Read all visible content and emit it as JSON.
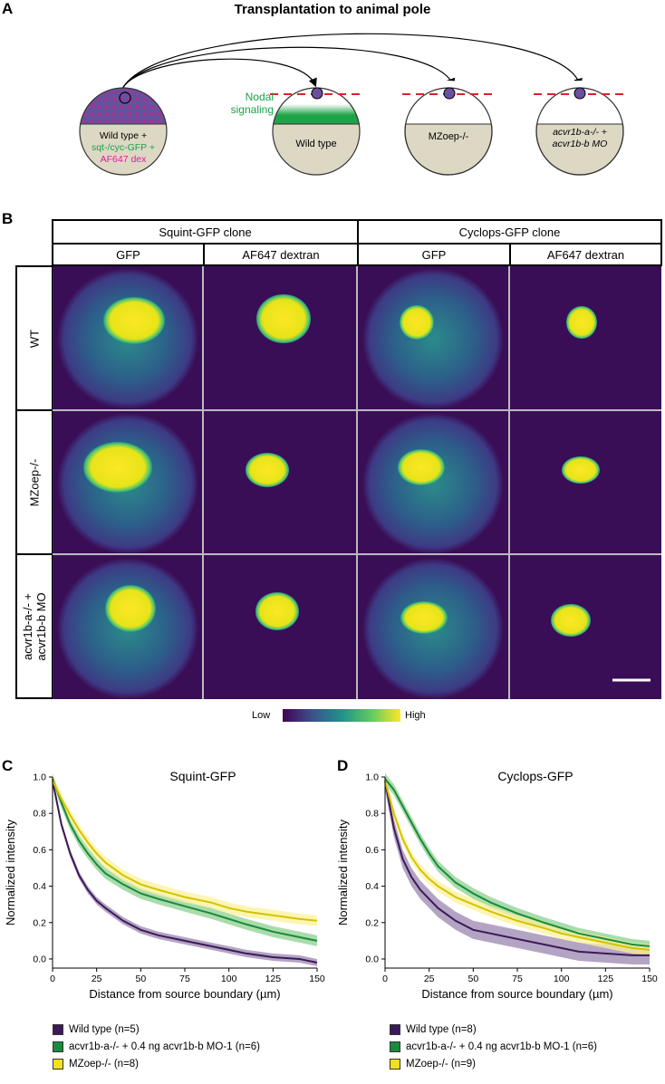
{
  "panel_a": {
    "letter": "A",
    "title": "Transplantation to animal pole",
    "donor_lines": [
      "Wild type +",
      "sqt-/cyc-GFP +",
      "AF647 dex"
    ],
    "nodal_label": [
      "Nodal",
      "signaling"
    ],
    "hosts": [
      "Wild type",
      "MZoep-/-",
      "acvr1b-a-/- + acvr1b-b MO"
    ],
    "colors": {
      "yolk": "#ddd8c4",
      "purple": "#6a4f9e",
      "green": "#17a34a",
      "magenta": "#e6199e",
      "red_dash": "#e0202a"
    }
  },
  "panel_b": {
    "letter": "B",
    "groups": [
      "Squint-GFP clone",
      "Cyclops-GFP clone"
    ],
    "columns": [
      "GFP",
      "AF647 dextran",
      "GFP",
      "AF647 dextran"
    ],
    "rows": [
      "WT",
      "MZoep-/-",
      "acvr1b-a-/- + acvr1b-b MO"
    ],
    "colorbar": {
      "low": "Low",
      "high": "High"
    }
  },
  "charts": [
    {
      "letter": "C",
      "title": "Squint-GFP",
      "xlabel": "Distance from source boundary (µm)",
      "ylabel": "Normalized intensity",
      "xticks": [
        "0",
        "25",
        "50",
        "75",
        "100",
        "125",
        "150"
      ],
      "yticks": [
        "0.0",
        "0.2",
        "0.4",
        "0.6",
        "0.8",
        "1.0"
      ],
      "legend": [
        "Wild type (n=5)",
        "acvr1b-a-/- + 0.4 ng acvr1b-b MO-1 (n=6)",
        "MZoep-/- (n=8)"
      ]
    },
    {
      "letter": "D",
      "title": "Cyclops-GFP",
      "xlabel": "Distance from source boundary (µm)",
      "ylabel": "Normalized intensity",
      "xticks": [
        "0",
        "25",
        "50",
        "75",
        "100",
        "125",
        "150"
      ],
      "yticks": [
        "0.0",
        "0.2",
        "0.4",
        "0.6",
        "0.8",
        "1.0"
      ],
      "legend": [
        "Wild type (n=8)",
        "acvr1b-a-/- + 0.4 ng acvr1b-b MO-1 (n=6)",
        "MZoep-/- (n=9)"
      ]
    }
  ],
  "chart_data": [
    {
      "type": "line",
      "title": "Squint-GFP",
      "xlabel": "Distance from source boundary (µm)",
      "ylabel": "Normalized intensity",
      "xlim": [
        0,
        150
      ],
      "ylim": [
        -0.05,
        1.0
      ],
      "x": [
        0,
        5,
        10,
        15,
        20,
        25,
        30,
        40,
        50,
        60,
        75,
        90,
        100,
        110,
        125,
        140,
        150
      ],
      "series": [
        {
          "name": "Wild type (n=5)",
          "color": "#3b1a59",
          "band": "#9b86b0",
          "values": [
            0.98,
            0.74,
            0.58,
            0.46,
            0.38,
            0.32,
            0.28,
            0.21,
            0.16,
            0.13,
            0.1,
            0.07,
            0.05,
            0.03,
            0.01,
            0.0,
            -0.02
          ],
          "err": 0.02
        },
        {
          "name": "acvr1b-a-/- + 0.4 ng acvr1b-b MO-1 (n=6)",
          "color": "#1a8a3c",
          "band": "#8ed08f",
          "values": [
            0.99,
            0.86,
            0.74,
            0.65,
            0.58,
            0.52,
            0.47,
            0.41,
            0.36,
            0.33,
            0.29,
            0.25,
            0.22,
            0.19,
            0.15,
            0.12,
            0.1
          ],
          "err": 0.03
        },
        {
          "name": "MZoep-/- (n=8)",
          "color": "#d4c300",
          "band": "#fbf29a",
          "values": [
            0.98,
            0.88,
            0.79,
            0.71,
            0.64,
            0.58,
            0.53,
            0.46,
            0.41,
            0.38,
            0.34,
            0.31,
            0.28,
            0.26,
            0.24,
            0.22,
            0.21
          ],
          "err": 0.03
        }
      ]
    },
    {
      "type": "line",
      "title": "Cyclops-GFP",
      "xlabel": "Distance from source boundary (µm)",
      "ylabel": "Normalized intensity",
      "xlim": [
        0,
        150
      ],
      "ylim": [
        -0.05,
        1.0
      ],
      "x": [
        0,
        5,
        10,
        15,
        20,
        25,
        30,
        40,
        50,
        60,
        75,
        90,
        100,
        110,
        125,
        140,
        150
      ],
      "series": [
        {
          "name": "Wild type (n=8)",
          "color": "#3b1a59",
          "band": "#9b86b0",
          "values": [
            0.98,
            0.72,
            0.55,
            0.45,
            0.38,
            0.33,
            0.28,
            0.21,
            0.16,
            0.14,
            0.11,
            0.08,
            0.06,
            0.04,
            0.03,
            0.02,
            0.02
          ],
          "err": 0.05
        },
        {
          "name": "acvr1b-a-/- + 0.4 ng acvr1b-b MO-1 (n=6)",
          "color": "#1a8a3c",
          "band": "#8ed08f",
          "values": [
            0.99,
            0.93,
            0.84,
            0.75,
            0.66,
            0.58,
            0.51,
            0.42,
            0.36,
            0.31,
            0.25,
            0.2,
            0.17,
            0.14,
            0.11,
            0.08,
            0.07
          ],
          "err": 0.03
        },
        {
          "name": "MZoep-/- (n=9)",
          "color": "#d4c300",
          "band": "#fbf29a",
          "values": [
            0.98,
            0.8,
            0.66,
            0.56,
            0.49,
            0.44,
            0.4,
            0.34,
            0.3,
            0.26,
            0.21,
            0.17,
            0.14,
            0.12,
            0.09,
            0.06,
            0.05
          ],
          "err": 0.03
        }
      ]
    }
  ]
}
